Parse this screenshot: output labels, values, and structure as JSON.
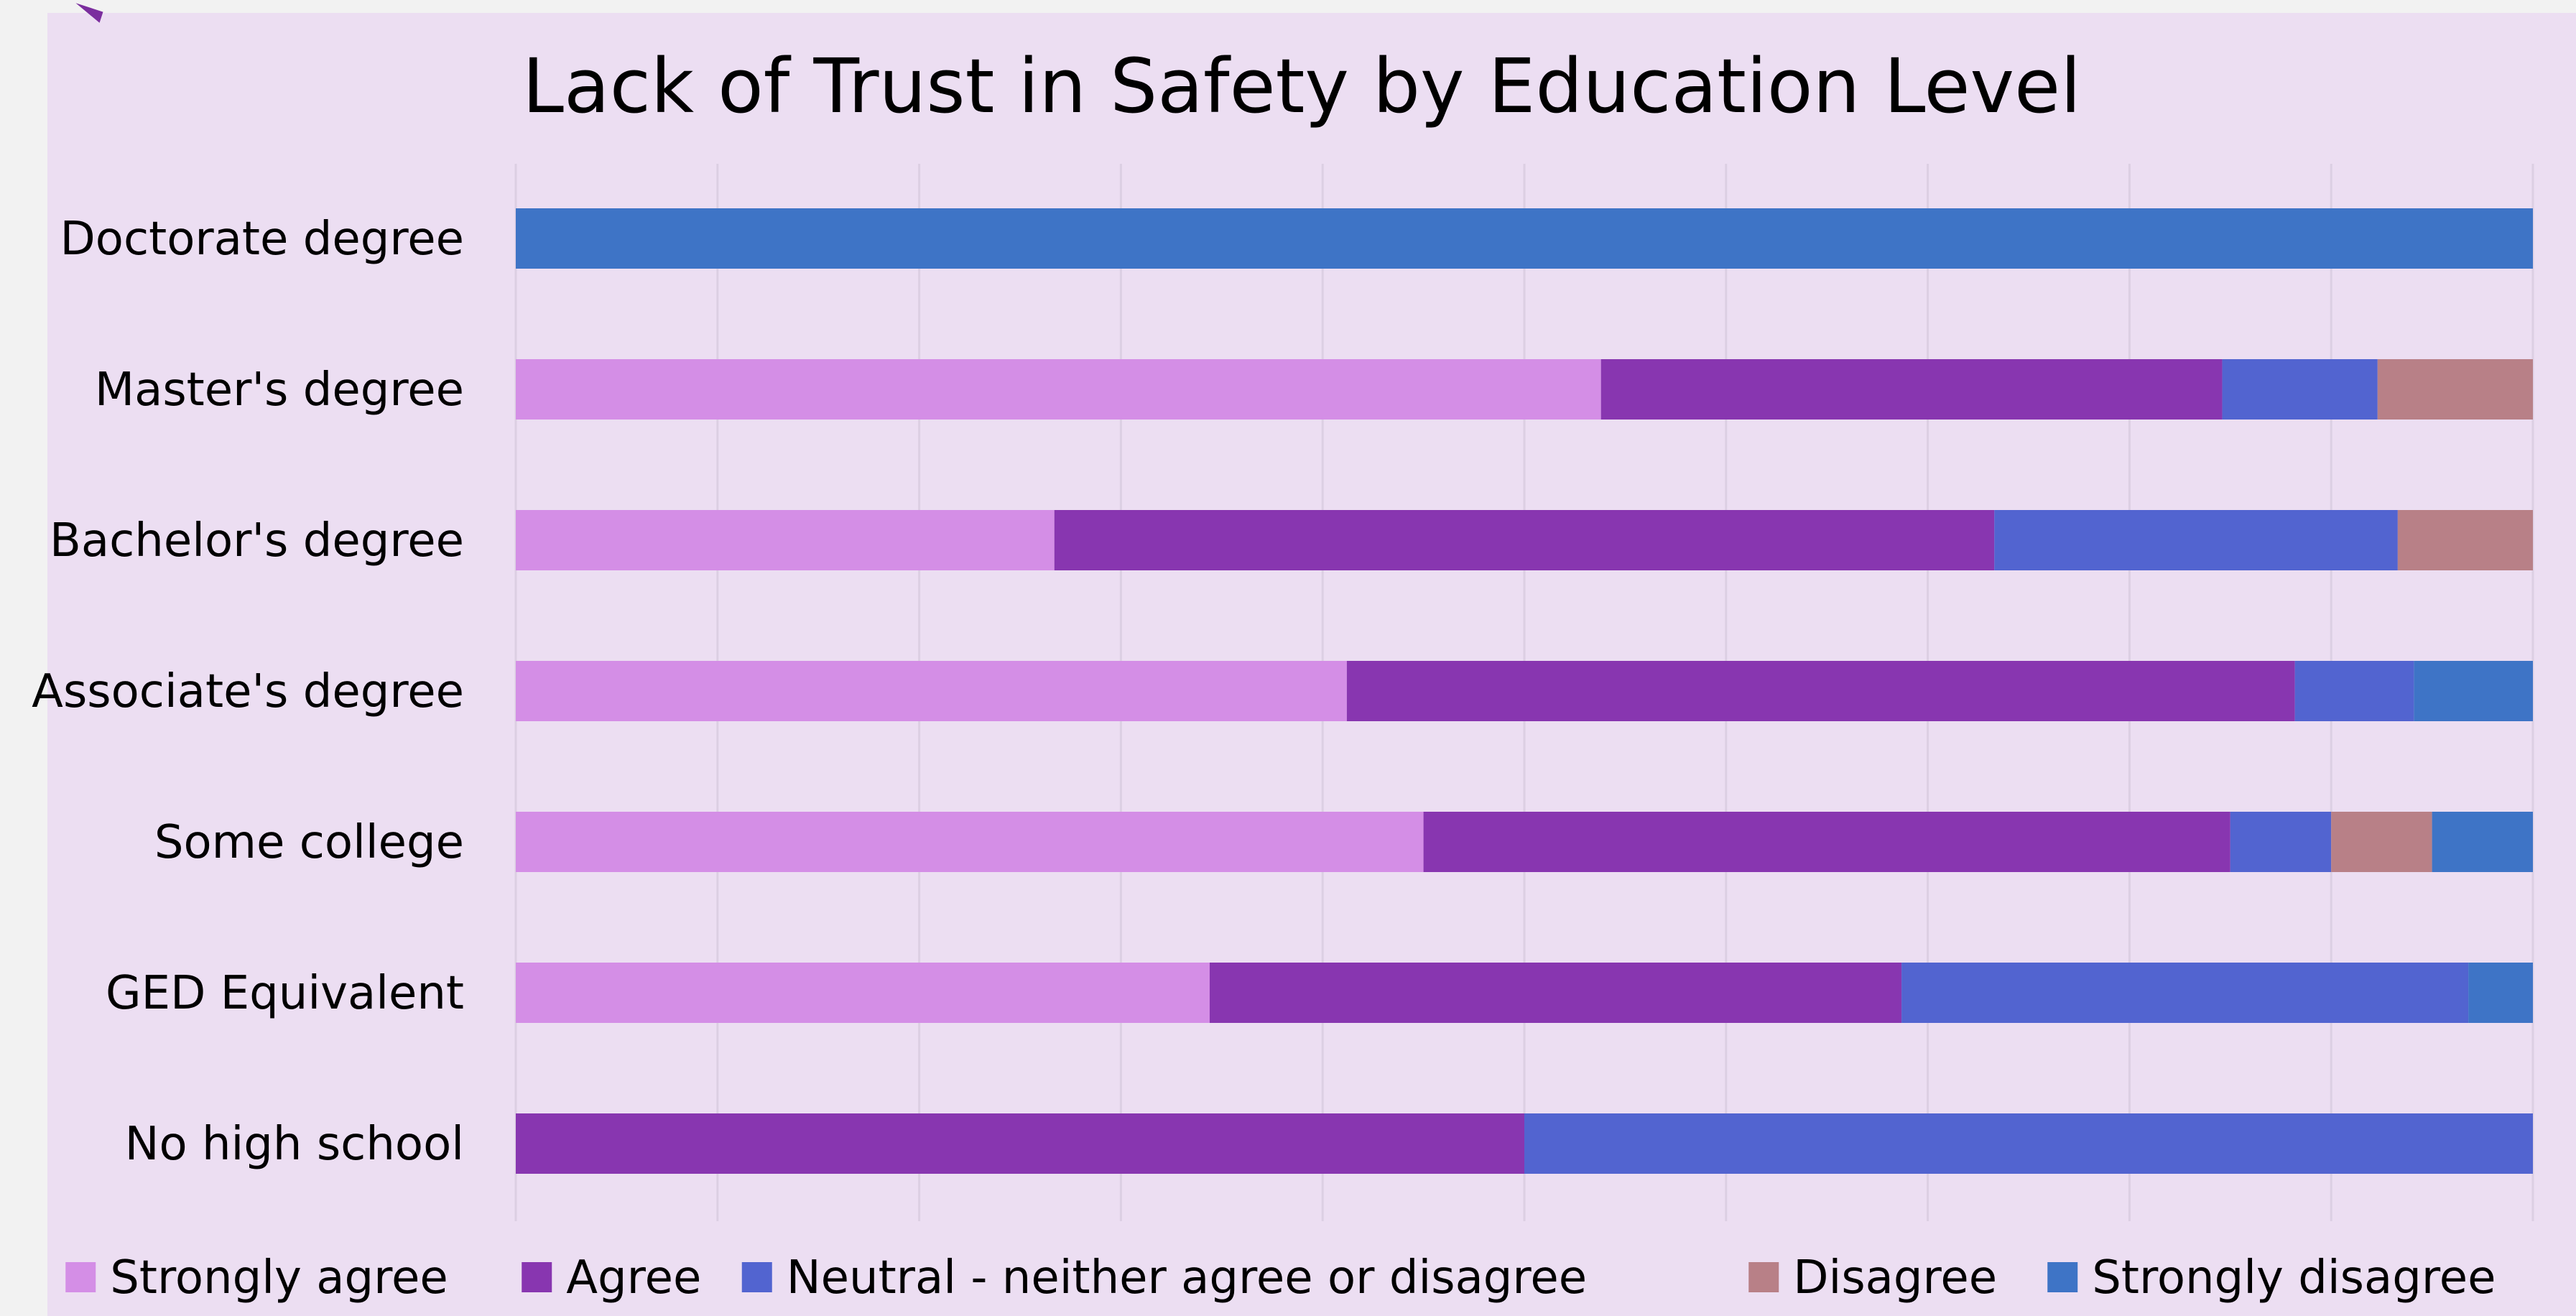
{
  "chart_data": {
    "type": "bar",
    "orientation": "horizontal",
    "stacked": true,
    "percent_stacked": true,
    "title": "Lack of Trust in Safety by Education Level",
    "xlabel": "",
    "ylabel": "",
    "xlim": [
      0,
      100
    ],
    "grid": true,
    "legend_position": "bottom",
    "categories": [
      "Doctorate degree",
      "Master's degree",
      "Bachelor's degree",
      "Associate's degree",
      "Some college",
      "GED Equivalent",
      "No high school"
    ],
    "series": [
      {
        "name": "Strongly agree",
        "color": "#d48ee6",
        "values": [
          0,
          53.8,
          26.7,
          41.2,
          45.0,
          34.4,
          0
        ]
      },
      {
        "name": "Agree",
        "color": "#8836b0",
        "values": [
          0,
          30.8,
          46.6,
          47.0,
          40.0,
          34.3,
          50.0
        ]
      },
      {
        "name": "Neutral - neither agree or disagree",
        "color": "#5264d0",
        "values": [
          0,
          7.7,
          20.0,
          5.9,
          5.0,
          28.1,
          50.0
        ]
      },
      {
        "name": "Disagree",
        "color": "#b88087",
        "values": [
          0,
          7.7,
          6.7,
          0,
          5.0,
          0,
          0
        ]
      },
      {
        "name": "Strongly disagree",
        "color": "#3e74c6",
        "values": [
          100,
          0,
          0,
          5.9,
          5.0,
          3.2,
          0
        ]
      }
    ]
  }
}
